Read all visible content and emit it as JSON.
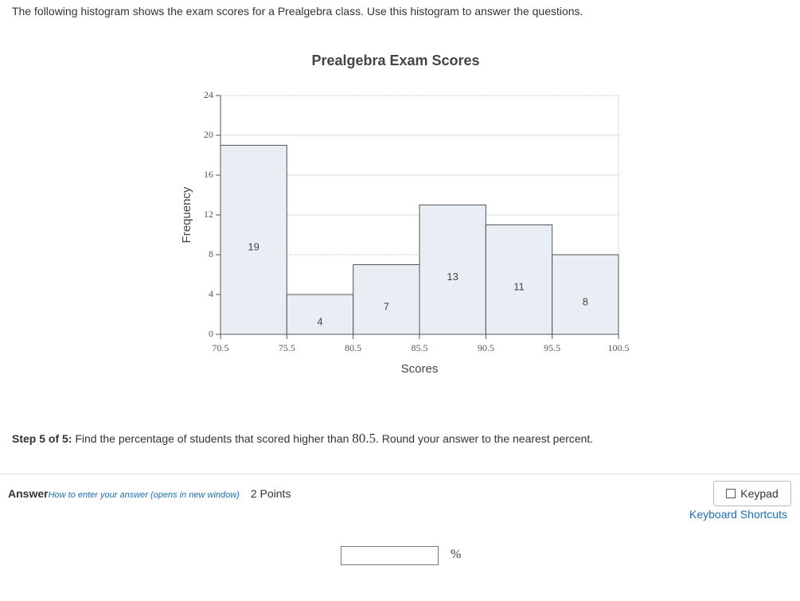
{
  "question": "The following histogram shows the exam scores for a Prealgebra class. Use this histogram to answer the questions.",
  "chart_data": {
    "type": "histogram",
    "title": "Prealgebra Exam Scores",
    "x_label": "Scores",
    "y_label": "Frequency",
    "bins": [
      70.5,
      75.5,
      80.5,
      85.5,
      90.5,
      95.5,
      100.5
    ],
    "values": [
      19,
      4,
      7,
      13,
      11,
      8
    ],
    "color": "#e8eef4",
    "xlim": [
      70.5,
      100.5
    ],
    "xticks": [
      70.5,
      75.5,
      80.5,
      85.5,
      90.5,
      95.5,
      100.5
    ],
    "ylim": [
      0,
      24
    ],
    "yticks": [
      0,
      4,
      8,
      12,
      16,
      20,
      24
    ],
    "grid": true
  },
  "step": {
    "label": "Step 5 of 5:",
    "text_before": "Find the percentage of students that scored higher than",
    "number": "80.5",
    "text_after": ". Round your answer to the nearest percent."
  },
  "answer": {
    "label": "Answer",
    "help_link": "How to enter your answer (opens in new window)",
    "points": "2 Points",
    "keypad": "Keypad",
    "shortcuts": "Keyboard Shortcuts",
    "unit": "%"
  }
}
